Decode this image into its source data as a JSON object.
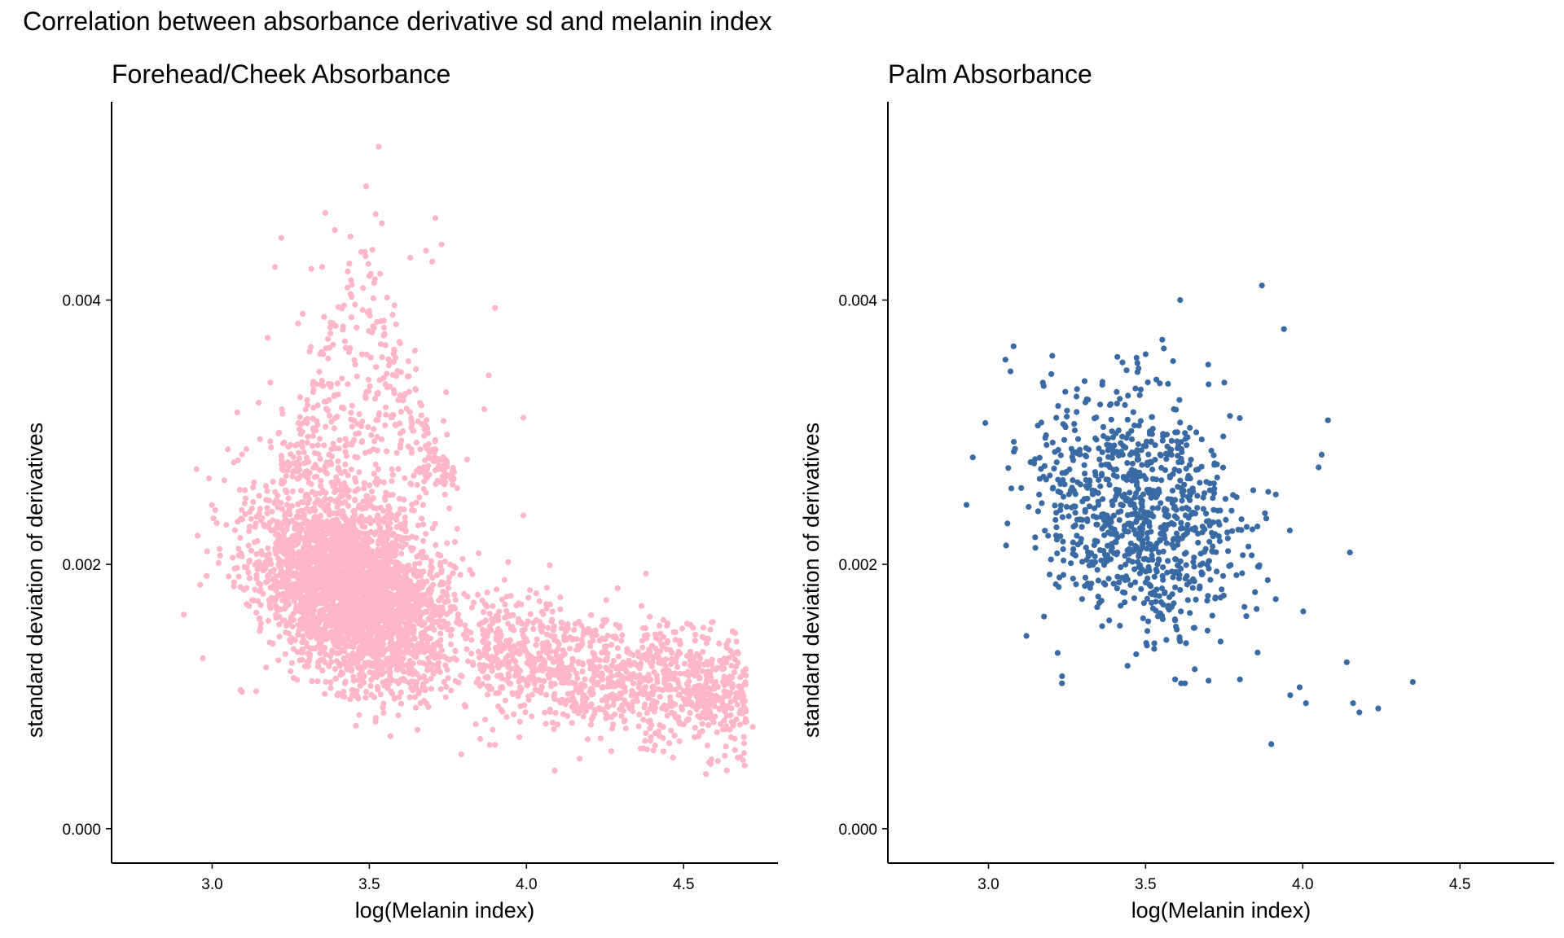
{
  "figure_title": "Correlation between absorbance derivative sd and melanin index",
  "chart_data": [
    {
      "type": "scatter",
      "title": "Forehead/Cheek Absorbance",
      "xlabel": "log(Melanin index)",
      "ylabel": "standard deviation of derivatives",
      "xlim": [
        2.68,
        4.8
      ],
      "ylim": [
        -0.00026,
        0.0055
      ],
      "xticks": [
        3.0,
        3.5,
        4.0,
        4.5
      ],
      "xtick_labels": [
        "3.0",
        "3.5",
        "4.0",
        "4.5"
      ],
      "yticks": [
        0.0,
        0.002,
        0.004
      ],
      "ytick_labels": [
        "0.000",
        "0.002",
        "0.004"
      ],
      "color": "#ffb6c8",
      "n_points": 5000,
      "approx_center": {
        "x": 3.5,
        "y": 0.0017
      },
      "trend": "negative",
      "points": [
        {
          "x": 2.91,
          "y": 0.00162
        },
        {
          "x": 2.97,
          "y": 0.00129
        },
        {
          "x": 2.99,
          "y": 0.00265
        },
        {
          "x": 3.01,
          "y": 0.00241
        },
        {
          "x": 3.05,
          "y": 0.00287
        },
        {
          "x": 3.08,
          "y": 0.00315
        },
        {
          "x": 3.09,
          "y": 0.00105
        },
        {
          "x": 3.14,
          "y": 0.00104
        },
        {
          "x": 3.2,
          "y": 0.00425
        },
        {
          "x": 3.22,
          "y": 0.00447
        },
        {
          "x": 3.3,
          "y": 0.00308
        },
        {
          "x": 3.31,
          "y": 0.00361
        },
        {
          "x": 3.35,
          "y": 0.00425
        },
        {
          "x": 3.36,
          "y": 0.00466
        },
        {
          "x": 3.39,
          "y": 0.00453
        },
        {
          "x": 3.44,
          "y": 0.00448
        },
        {
          "x": 3.48,
          "y": 0.00409
        },
        {
          "x": 3.49,
          "y": 0.00486
        },
        {
          "x": 3.51,
          "y": 0.00438
        },
        {
          "x": 3.52,
          "y": 0.00465
        },
        {
          "x": 3.53,
          "y": 0.00516
        },
        {
          "x": 3.54,
          "y": 0.00458
        },
        {
          "x": 3.58,
          "y": 0.00396
        },
        {
          "x": 3.63,
          "y": 0.00432
        },
        {
          "x": 3.7,
          "y": 0.00429
        },
        {
          "x": 3.71,
          "y": 0.00462
        },
        {
          "x": 3.73,
          "y": 0.00442
        },
        {
          "x": 3.88,
          "y": 0.00343
        },
        {
          "x": 3.9,
          "y": 0.00394
        },
        {
          "x": 3.99,
          "y": 0.00311
        },
        {
          "x": 3.99,
          "y": 0.00237
        },
        {
          "x": 4.09,
          "y": 0.00044
        },
        {
          "x": 4.29,
          "y": 0.00182
        },
        {
          "x": 4.38,
          "y": 0.00193
        },
        {
          "x": 4.53,
          "y": 0.00152
        },
        {
          "x": 4.63,
          "y": 0.00112
        },
        {
          "x": 4.65,
          "y": 0.00096
        },
        {
          "x": 4.68,
          "y": 0.00054
        },
        {
          "x": 4.69,
          "y": 0.00119
        },
        {
          "x": 4.72,
          "y": 0.00077
        }
      ]
    },
    {
      "type": "scatter",
      "title": "Palm Absorbance",
      "xlabel": "log(Melanin index)",
      "ylabel": "standard deviation of derivatives",
      "xlim": [
        2.68,
        4.8
      ],
      "ylim": [
        -0.00026,
        0.0055
      ],
      "xticks": [
        3.0,
        3.5,
        4.0,
        4.5
      ],
      "xtick_labels": [
        "3.0",
        "3.5",
        "4.0",
        "4.5"
      ],
      "yticks": [
        0.0,
        0.002,
        0.004
      ],
      "ytick_labels": [
        "0.000",
        "0.002",
        "0.004"
      ],
      "color": "#3a6aa4",
      "n_points": 900,
      "approx_center": {
        "x": 3.5,
        "y": 0.0024
      },
      "trend": "weak negative",
      "points": [
        {
          "x": 2.93,
          "y": 0.00245
        },
        {
          "x": 2.95,
          "y": 0.00281
        },
        {
          "x": 2.99,
          "y": 0.00307
        },
        {
          "x": 3.08,
          "y": 0.00365
        },
        {
          "x": 3.07,
          "y": 0.00346
        },
        {
          "x": 3.2,
          "y": 0.00344
        },
        {
          "x": 3.22,
          "y": 0.00133
        },
        {
          "x": 3.28,
          "y": 0.00327
        },
        {
          "x": 3.41,
          "y": 0.00357
        },
        {
          "x": 3.47,
          "y": 0.00132
        },
        {
          "x": 3.5,
          "y": 0.00359
        },
        {
          "x": 3.61,
          "y": 0.004
        },
        {
          "x": 3.7,
          "y": 0.00112
        },
        {
          "x": 3.8,
          "y": 0.00113
        },
        {
          "x": 3.87,
          "y": 0.00411
        },
        {
          "x": 3.9,
          "y": 0.00064
        },
        {
          "x": 3.94,
          "y": 0.00378
        },
        {
          "x": 3.96,
          "y": 0.00101
        },
        {
          "x": 3.99,
          "y": 0.00107
        },
        {
          "x": 4.01,
          "y": 0.00095
        },
        {
          "x": 4.06,
          "y": 0.00283
        },
        {
          "x": 4.08,
          "y": 0.00309
        },
        {
          "x": 4.14,
          "y": 0.00126
        },
        {
          "x": 4.15,
          "y": 0.00209
        },
        {
          "x": 4.16,
          "y": 0.00095
        },
        {
          "x": 4.18,
          "y": 0.00088
        },
        {
          "x": 4.24,
          "y": 0.00091
        },
        {
          "x": 4.35,
          "y": 0.00111
        }
      ]
    }
  ]
}
